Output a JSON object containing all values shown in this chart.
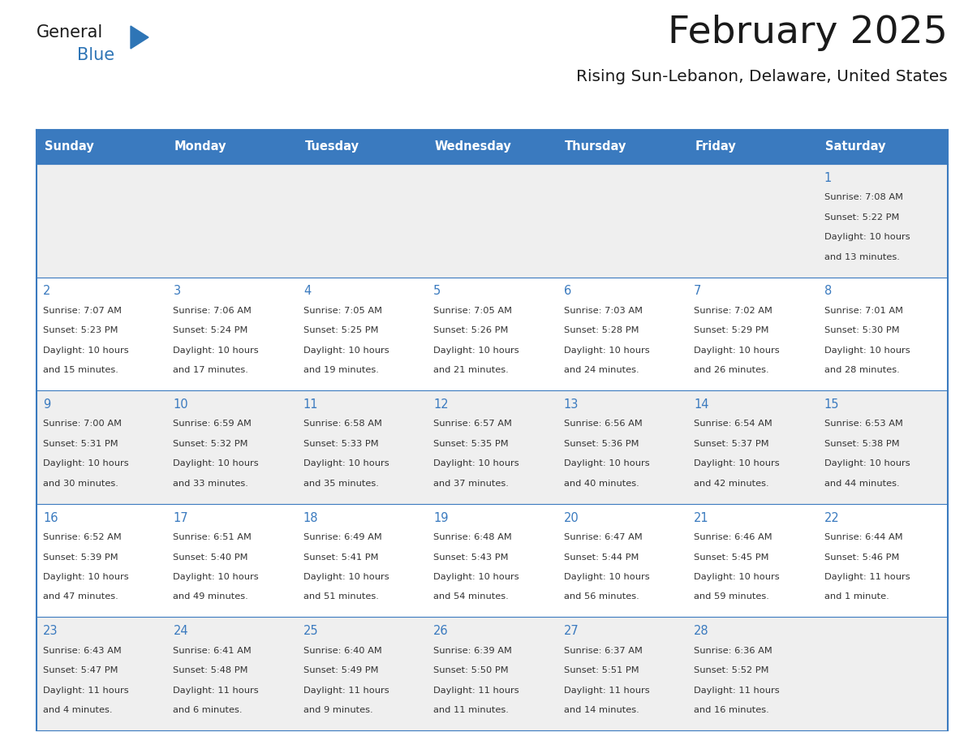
{
  "title": "February 2025",
  "subtitle": "Rising Sun-Lebanon, Delaware, United States",
  "header_bg_color": "#3a7abf",
  "header_text_color": "#ffffff",
  "cell_bg_color_odd": "#efefef",
  "cell_bg_color_even": "#ffffff",
  "cell_border_color": "#3a7abf",
  "day_number_color": "#3a7abf",
  "text_color": "#333333",
  "title_color": "#1a1a1a",
  "subtitle_color": "#1a1a1a",
  "days_of_week": [
    "Sunday",
    "Monday",
    "Tuesday",
    "Wednesday",
    "Thursday",
    "Friday",
    "Saturday"
  ],
  "weeks": [
    [
      null,
      null,
      null,
      null,
      null,
      null,
      1
    ],
    [
      2,
      3,
      4,
      5,
      6,
      7,
      8
    ],
    [
      9,
      10,
      11,
      12,
      13,
      14,
      15
    ],
    [
      16,
      17,
      18,
      19,
      20,
      21,
      22
    ],
    [
      23,
      24,
      25,
      26,
      27,
      28,
      null
    ]
  ],
  "cell_data": {
    "1": {
      "sunrise": "7:08 AM",
      "sunset": "5:22 PM",
      "daylight": "10 hours",
      "daylight2": "and 13 minutes."
    },
    "2": {
      "sunrise": "7:07 AM",
      "sunset": "5:23 PM",
      "daylight": "10 hours",
      "daylight2": "and 15 minutes."
    },
    "3": {
      "sunrise": "7:06 AM",
      "sunset": "5:24 PM",
      "daylight": "10 hours",
      "daylight2": "and 17 minutes."
    },
    "4": {
      "sunrise": "7:05 AM",
      "sunset": "5:25 PM",
      "daylight": "10 hours",
      "daylight2": "and 19 minutes."
    },
    "5": {
      "sunrise": "7:05 AM",
      "sunset": "5:26 PM",
      "daylight": "10 hours",
      "daylight2": "and 21 minutes."
    },
    "6": {
      "sunrise": "7:03 AM",
      "sunset": "5:28 PM",
      "daylight": "10 hours",
      "daylight2": "and 24 minutes."
    },
    "7": {
      "sunrise": "7:02 AM",
      "sunset": "5:29 PM",
      "daylight": "10 hours",
      "daylight2": "and 26 minutes."
    },
    "8": {
      "sunrise": "7:01 AM",
      "sunset": "5:30 PM",
      "daylight": "10 hours",
      "daylight2": "and 28 minutes."
    },
    "9": {
      "sunrise": "7:00 AM",
      "sunset": "5:31 PM",
      "daylight": "10 hours",
      "daylight2": "and 30 minutes."
    },
    "10": {
      "sunrise": "6:59 AM",
      "sunset": "5:32 PM",
      "daylight": "10 hours",
      "daylight2": "and 33 minutes."
    },
    "11": {
      "sunrise": "6:58 AM",
      "sunset": "5:33 PM",
      "daylight": "10 hours",
      "daylight2": "and 35 minutes."
    },
    "12": {
      "sunrise": "6:57 AM",
      "sunset": "5:35 PM",
      "daylight": "10 hours",
      "daylight2": "and 37 minutes."
    },
    "13": {
      "sunrise": "6:56 AM",
      "sunset": "5:36 PM",
      "daylight": "10 hours",
      "daylight2": "and 40 minutes."
    },
    "14": {
      "sunrise": "6:54 AM",
      "sunset": "5:37 PM",
      "daylight": "10 hours",
      "daylight2": "and 42 minutes."
    },
    "15": {
      "sunrise": "6:53 AM",
      "sunset": "5:38 PM",
      "daylight": "10 hours",
      "daylight2": "and 44 minutes."
    },
    "16": {
      "sunrise": "6:52 AM",
      "sunset": "5:39 PM",
      "daylight": "10 hours",
      "daylight2": "and 47 minutes."
    },
    "17": {
      "sunrise": "6:51 AM",
      "sunset": "5:40 PM",
      "daylight": "10 hours",
      "daylight2": "and 49 minutes."
    },
    "18": {
      "sunrise": "6:49 AM",
      "sunset": "5:41 PM",
      "daylight": "10 hours",
      "daylight2": "and 51 minutes."
    },
    "19": {
      "sunrise": "6:48 AM",
      "sunset": "5:43 PM",
      "daylight": "10 hours",
      "daylight2": "and 54 minutes."
    },
    "20": {
      "sunrise": "6:47 AM",
      "sunset": "5:44 PM",
      "daylight": "10 hours",
      "daylight2": "and 56 minutes."
    },
    "21": {
      "sunrise": "6:46 AM",
      "sunset": "5:45 PM",
      "daylight": "10 hours",
      "daylight2": "and 59 minutes."
    },
    "22": {
      "sunrise": "6:44 AM",
      "sunset": "5:46 PM",
      "daylight": "11 hours",
      "daylight2": "and 1 minute."
    },
    "23": {
      "sunrise": "6:43 AM",
      "sunset": "5:47 PM",
      "daylight": "11 hours",
      "daylight2": "and 4 minutes."
    },
    "24": {
      "sunrise": "6:41 AM",
      "sunset": "5:48 PM",
      "daylight": "11 hours",
      "daylight2": "and 6 minutes."
    },
    "25": {
      "sunrise": "6:40 AM",
      "sunset": "5:49 PM",
      "daylight": "11 hours",
      "daylight2": "and 9 minutes."
    },
    "26": {
      "sunrise": "6:39 AM",
      "sunset": "5:50 PM",
      "daylight": "11 hours",
      "daylight2": "and 11 minutes."
    },
    "27": {
      "sunrise": "6:37 AM",
      "sunset": "5:51 PM",
      "daylight": "11 hours",
      "daylight2": "and 14 minutes."
    },
    "28": {
      "sunrise": "6:36 AM",
      "sunset": "5:52 PM",
      "daylight": "11 hours",
      "daylight2": "and 16 minutes."
    }
  },
  "logo_text1": "General",
  "logo_text2": "Blue",
  "logo_triangle_color": "#2e75b6",
  "fig_width": 11.88,
  "fig_height": 9.18
}
